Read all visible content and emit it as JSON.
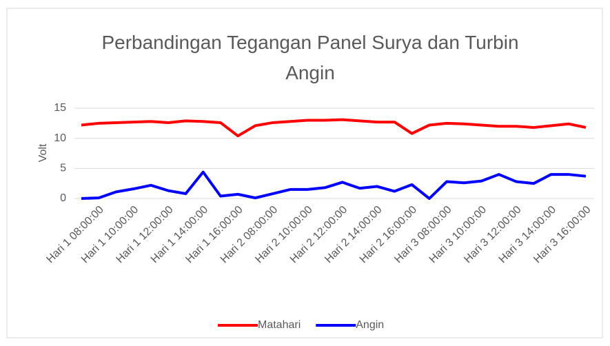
{
  "chart_data": {
    "type": "line",
    "title": "Perbandingan Tegangan Panel Surya dan Turbin Angin",
    "y_label": "Volt",
    "categories": [
      "Hari 1 08:00:00",
      null,
      "Hari 1 10:00:00",
      null,
      "Hari 1 12:00:00",
      null,
      "Hari 1 14:00:00",
      null,
      "Hari 1 16:00:00",
      null,
      "Hari 2 08:00:00",
      null,
      "Hari 2 10:00:00",
      null,
      "Hari 2 12:00:00",
      null,
      "Hari 2 14:00:00",
      null,
      "Hari 2 16:00:00",
      null,
      "Hari 3 08:00:00",
      null,
      "Hari 3 10:00:00",
      null,
      "Hari 3 12:00:00",
      null,
      "Hari 3 14:00:00",
      null,
      "Hari 3 16:00:00",
      null
    ],
    "series": [
      {
        "name": "Matahari",
        "color": "#ff0000",
        "values": [
          12.2,
          12.5,
          12.6,
          12.7,
          12.8,
          12.6,
          12.9,
          12.8,
          12.6,
          10.4,
          12.1,
          12.6,
          12.8,
          13.0,
          13.0,
          13.1,
          12.9,
          12.7,
          12.7,
          10.8,
          12.2,
          12.5,
          12.4,
          12.2,
          12.0,
          12.0,
          11.8,
          12.1,
          12.4,
          11.8
        ]
      },
      {
        "name": "Angin",
        "color": "#0000ff",
        "values": [
          0,
          0.1,
          1.1,
          1.6,
          2.2,
          1.3,
          0.8,
          4.4,
          0.4,
          0.7,
          0.1,
          0.8,
          1.5,
          1.5,
          1.8,
          2.7,
          1.7,
          2.0,
          1.2,
          2.3,
          0,
          2.8,
          2.6,
          2.9,
          4.0,
          2.8,
          2.5,
          4.0,
          4.0,
          3.7
        ]
      }
    ],
    "ylim": [
      0,
      15
    ],
    "yticks": [
      0,
      5,
      10,
      15
    ],
    "grid": true,
    "legend": "bottom"
  }
}
